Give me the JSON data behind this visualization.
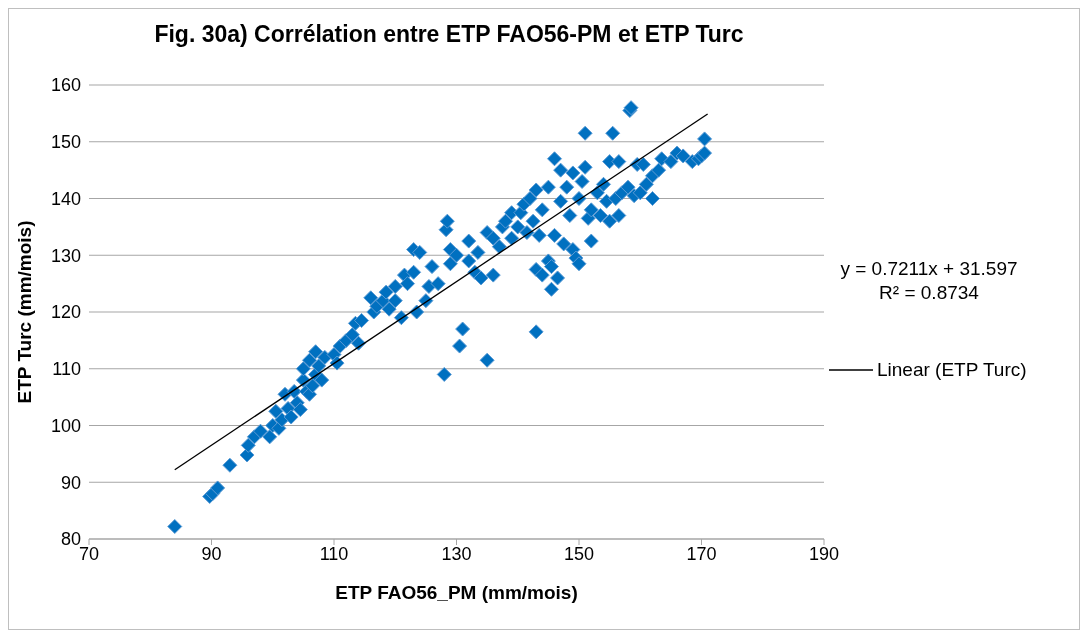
{
  "chart_data": {
    "type": "scatter",
    "title": "Fig. 30a) Corrélation entre ETP FAO56-PM et ETP Turc",
    "xlabel": "ETP FAO56_PM (mm/mois)",
    "ylabel": "ETP Turc (mm/mois)",
    "xlim": [
      70,
      190
    ],
    "xticks": [
      70,
      90,
      110,
      130,
      150,
      170,
      190
    ],
    "ylim": [
      80,
      160
    ],
    "yticks": [
      80,
      90,
      100,
      110,
      120,
      130,
      140,
      150,
      160
    ],
    "grid": "y",
    "marker": "diamond",
    "legend": "right",
    "annotations": [
      "y = 0.7211x + 31.597",
      "R² = 0.8734"
    ],
    "series": [
      {
        "color": "#0070c0",
        "x": [
          84,
          89.7,
          90.2,
          91,
          93,
          95.8,
          96,
          97,
          98,
          99.5,
          100,
          100.5,
          101,
          101.5,
          102,
          102.5,
          103,
          103.5,
          104,
          104.5,
          105,
          105,
          105.5,
          106,
          106,
          106.5,
          107,
          107,
          107.5,
          108,
          108.5,
          110,
          110.5,
          111,
          112,
          113,
          113.5,
          114,
          114.5,
          116,
          116.5,
          117,
          118,
          118.5,
          119,
          120,
          120,
          121,
          121.5,
          122,
          123,
          123,
          123.5,
          124,
          125,
          125.5,
          126,
          127,
          128,
          128.3,
          128.5,
          129,
          129,
          130,
          130.5,
          131,
          132,
          132,
          133,
          133.5,
          134,
          135,
          135,
          136,
          136,
          137,
          137.5,
          138,
          139,
          139,
          140,
          140.5,
          141,
          141.5,
          142,
          142.5,
          143,
          143,
          143,
          143.5,
          144,
          144,
          145,
          145,
          145.5,
          145.5,
          146,
          146,
          146.5,
          147,
          147,
          147.5,
          148,
          148.5,
          149,
          149,
          149.5,
          150,
          150,
          150.5,
          151,
          151,
          151.5,
          152,
          152,
          153,
          153.5,
          154,
          154.5,
          155,
          155,
          155.5,
          156,
          156.5,
          156.5,
          157,
          158,
          158.3,
          158.5,
          159,
          159.5,
          160,
          160.5,
          161,
          162,
          162,
          163,
          163.5,
          165,
          166,
          167,
          168.5,
          169.5,
          170,
          170.5,
          170.5
        ],
        "values": [
          82.2,
          87.5,
          88,
          89,
          93,
          94.8,
          96.5,
          98,
          99,
          98,
          100,
          102.5,
          99.5,
          101,
          105.5,
          103,
          101.5,
          106,
          104,
          102.8,
          108,
          110,
          106,
          105.5,
          111.5,
          107,
          109,
          113,
          110.5,
          108,
          112,
          112.5,
          111,
          114,
          115,
          116,
          118,
          114.5,
          118.5,
          122.5,
          120,
          121,
          122,
          123.5,
          120.5,
          124.5,
          122,
          119,
          126.5,
          125,
          127,
          131,
          120,
          130.5,
          122,
          124.5,
          128,
          125,
          109,
          134.5,
          136,
          131,
          128.5,
          130,
          114,
          117,
          129,
          132.5,
          127,
          130.5,
          126,
          111.5,
          134,
          126.5,
          133,
          131.5,
          135,
          136,
          133,
          137.5,
          135,
          137.5,
          139,
          134,
          140,
          136,
          116.5,
          127.5,
          141.5,
          133.5,
          126.5,
          138,
          129,
          142,
          128,
          124,
          147,
          133.5,
          126,
          145,
          139.5,
          132,
          142,
          137,
          131,
          144.5,
          129.5,
          140,
          128.5,
          143,
          145.5,
          151.5,
          136.5,
          132.5,
          138,
          141,
          137,
          142.5,
          139.5,
          146.5,
          136,
          151.5,
          140,
          146.5,
          137,
          141,
          142,
          155.5,
          156,
          140.5,
          146,
          141,
          146,
          142.5,
          140,
          144,
          145,
          147,
          146.5,
          148,
          147.5,
          146.5,
          147,
          147.5,
          150.5,
          148
        ]
      },
      {
        "type": "line",
        "name": "Linear (ETP Turc)",
        "color": "#000000",
        "marker": "none",
        "x": [
          84,
          171
        ],
        "values": [
          92.2,
          154.9
        ]
      }
    ]
  }
}
